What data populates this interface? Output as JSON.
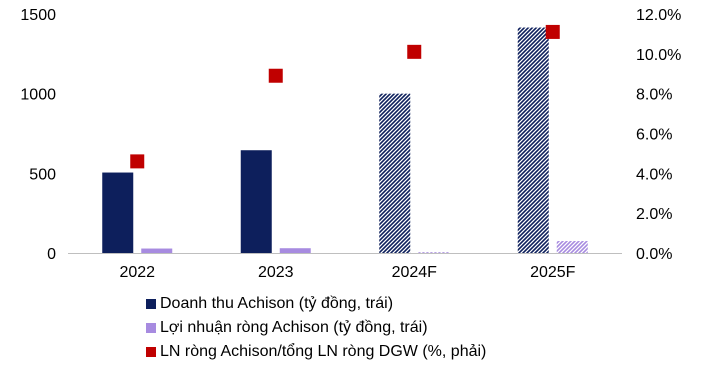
{
  "chart_data": {
    "type": "bar",
    "categories": [
      "2022",
      "2023",
      "2024F",
      "2025F"
    ],
    "forecast_categories": [
      "2024F",
      "2025F"
    ],
    "series": [
      {
        "name": "Doanh thu Achison (tỷ đồng, trái)",
        "kind": "bar",
        "axis": "left",
        "color": "#0d1f5c",
        "values": [
          505,
          645,
          1000,
          1415
        ]
      },
      {
        "name": "Lợi nhuận ròng Achison (tỷ đồng, trái)",
        "kind": "bar",
        "axis": "left",
        "color": "#a78be0",
        "values": [
          28,
          30,
          5,
          75
        ]
      },
      {
        "name": "LN ròng Achison/tổng LN ròng DGW (%, phải)",
        "kind": "marker",
        "axis": "right",
        "color": "#c00000",
        "values": [
          4.6,
          8.9,
          10.1,
          11.1
        ]
      }
    ],
    "left_axis": {
      "min": 0,
      "max": 1500,
      "ticks": [
        "0",
        "500",
        "1000",
        "1500"
      ]
    },
    "right_axis": {
      "min": 0,
      "max": 12,
      "ticks": [
        "0.0%",
        "2.0%",
        "4.0%",
        "6.0%",
        "8.0%",
        "10.0%",
        "12.0%"
      ]
    },
    "grid": false,
    "legend_position": "bottom-left"
  }
}
